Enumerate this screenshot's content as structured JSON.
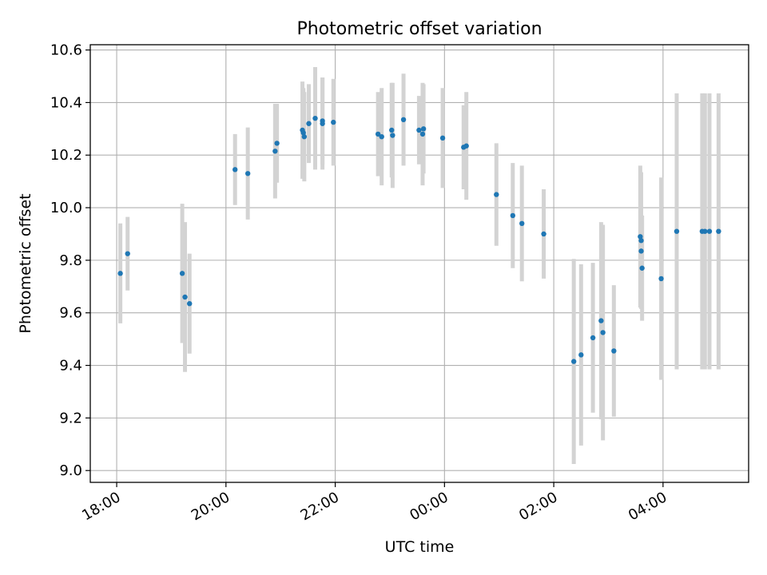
{
  "chart_data": {
    "type": "scatter",
    "title": "Photometric offset variation",
    "xlabel": "UTC time",
    "ylabel": "Photometric offset",
    "x_ticks": [
      "18:00",
      "20:00",
      "22:00",
      "00:00",
      "02:00",
      "04:00"
    ],
    "y_ticks": [
      "9.0",
      "9.2",
      "9.4",
      "9.6",
      "9.8",
      "10.0",
      "10.2",
      "10.4",
      "10.6"
    ],
    "xlim": [
      "17:31",
      "05:34"
    ],
    "ylim": [
      8.955,
      10.62
    ],
    "grid": true,
    "marker_color": "#1f77b4",
    "errorbar_color": "#d3d3d3",
    "points": [
      {
        "x": "18:04",
        "y": 9.75,
        "err": 0.19
      },
      {
        "x": "18:12",
        "y": 9.825,
        "err": 0.14
      },
      {
        "x": "19:12",
        "y": 9.75,
        "err": 0.265
      },
      {
        "x": "19:15",
        "y": 9.66,
        "err": 0.285
      },
      {
        "x": "19:20",
        "y": 9.635,
        "err": 0.19
      },
      {
        "x": "20:10",
        "y": 10.145,
        "err": 0.135
      },
      {
        "x": "20:24",
        "y": 10.13,
        "err": 0.175
      },
      {
        "x": "20:54",
        "y": 10.215,
        "err": 0.18
      },
      {
        "x": "20:56",
        "y": 10.245,
        "err": 0.15
      },
      {
        "x": "21:24",
        "y": 10.295,
        "err": 0.185
      },
      {
        "x": "21:25",
        "y": 10.285,
        "err": 0.17
      },
      {
        "x": "21:26",
        "y": 10.27,
        "err": 0.17
      },
      {
        "x": "21:31",
        "y": 10.32,
        "err": 0.15
      },
      {
        "x": "21:38",
        "y": 10.34,
        "err": 0.195
      },
      {
        "x": "21:46",
        "y": 10.33,
        "err": 0.165
      },
      {
        "x": "21:46",
        "y": 10.32,
        "err": 0.175
      },
      {
        "x": "21:58",
        "y": 10.325,
        "err": 0.165
      },
      {
        "x": "22:47",
        "y": 10.28,
        "err": 0.16
      },
      {
        "x": "22:51",
        "y": 10.27,
        "err": 0.185
      },
      {
        "x": "23:02",
        "y": 10.295,
        "err": 0.18
      },
      {
        "x": "23:03",
        "y": 10.275,
        "err": 0.2
      },
      {
        "x": "23:15",
        "y": 10.335,
        "err": 0.175
      },
      {
        "x": "23:32",
        "y": 10.295,
        "err": 0.13
      },
      {
        "x": "23:36",
        "y": 10.28,
        "err": 0.195
      },
      {
        "x": "23:37",
        "y": 10.3,
        "err": 0.17
      },
      {
        "x": "23:58",
        "y": 10.265,
        "err": 0.19
      },
      {
        "x": "00:21",
        "y": 10.23,
        "err": 0.16
      },
      {
        "x": "00:24",
        "y": 10.235,
        "err": 0.205
      },
      {
        "x": "00:57",
        "y": 10.05,
        "err": 0.195
      },
      {
        "x": "01:15",
        "y": 9.97,
        "err": 0.2
      },
      {
        "x": "01:25",
        "y": 9.94,
        "err": 0.22
      },
      {
        "x": "01:49",
        "y": 9.9,
        "err": 0.17
      },
      {
        "x": "02:22",
        "y": 9.415,
        "err": 0.39
      },
      {
        "x": "02:30",
        "y": 9.44,
        "err": 0.345
      },
      {
        "x": "02:43",
        "y": 9.505,
        "err": 0.285
      },
      {
        "x": "02:52",
        "y": 9.57,
        "err": 0.375
      },
      {
        "x": "02:54",
        "y": 9.525,
        "err": 0.41
      },
      {
        "x": "03:06",
        "y": 9.455,
        "err": 0.25
      },
      {
        "x": "03:35",
        "y": 9.89,
        "err": 0.27
      },
      {
        "x": "03:36",
        "y": 9.875,
        "err": 0.26
      },
      {
        "x": "03:36",
        "y": 9.835,
        "err": 0.215
      },
      {
        "x": "03:37",
        "y": 9.77,
        "err": 0.2
      },
      {
        "x": "03:58",
        "y": 9.73,
        "err": 0.385
      },
      {
        "x": "04:15",
        "y": 9.91,
        "err": 0.525
      },
      {
        "x": "04:43",
        "y": 9.91,
        "err": 0.525
      },
      {
        "x": "04:46",
        "y": 9.91,
        "err": 0.525
      },
      {
        "x": "04:51",
        "y": 9.91,
        "err": 0.525
      },
      {
        "x": "05:01",
        "y": 9.91,
        "err": 0.525
      }
    ]
  }
}
